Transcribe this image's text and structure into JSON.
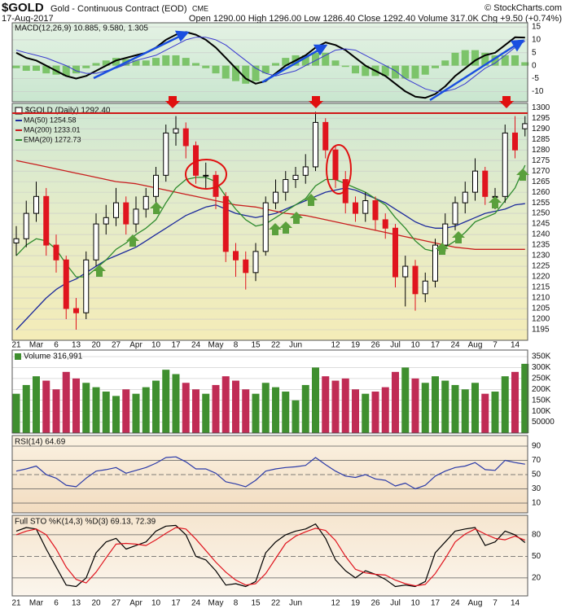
{
  "header": {
    "symbol": "$GOLD",
    "name": "Gold - Continuous Contract (EOD)",
    "exchange": "CME",
    "source": "© StockCharts.com",
    "date": "17-Aug-2017",
    "quote": "Open 1290.00 High 1296.00 Low 1286.40 Close 1292.40 Volume 317.0K Chg +9.50 (+0.74%)"
  },
  "chart_data": [
    {
      "type": "macd",
      "legend": "MACD(12,26,9) 10.885, 9.580, 1.305",
      "ylim": [
        -14,
        16.6
      ],
      "yticks": [
        15,
        10,
        5,
        0,
        -5,
        -10
      ],
      "grid": true,
      "series": [
        {
          "color": "#000000",
          "values": [
            5,
            3,
            2,
            0,
            -2,
            -4,
            -5,
            -4,
            -2,
            0,
            2,
            3,
            4,
            5,
            7,
            10,
            12,
            13,
            12,
            10,
            7,
            3,
            -1,
            -5,
            -7,
            -6,
            -3,
            0,
            2,
            4,
            7,
            9,
            8,
            6,
            3,
            0,
            -2,
            -4,
            -7,
            -10,
            -12,
            -12.5,
            -11,
            -8,
            -4,
            -1,
            2,
            4,
            5,
            8,
            11,
            10.885
          ]
        },
        {
          "color": "#3a3ad0",
          "values": [
            6,
            5,
            4,
            3,
            1.5,
            0,
            -2,
            -3,
            -3,
            -2,
            -1,
            0.5,
            2,
            3,
            4,
            6,
            8,
            10,
            11,
            11,
            10,
            8,
            5,
            2,
            -1,
            -3,
            -4,
            -3,
            -2,
            0,
            2,
            4,
            6,
            6.5,
            6,
            4,
            2,
            0,
            -2,
            -5,
            -7,
            -9,
            -10,
            -10,
            -9,
            -7,
            -4,
            -1,
            1,
            4,
            7,
            9.58
          ]
        }
      ],
      "histogram": [
        -1,
        -2,
        -2,
        -3,
        -3.5,
        -4,
        -3,
        -1,
        1,
        2,
        3,
        2.5,
        2,
        2,
        3,
        4,
        4,
        3,
        1,
        -1,
        -3,
        -5,
        -6,
        -7,
        -6,
        -3,
        1,
        3,
        4,
        4,
        5,
        5,
        2,
        -0.5,
        -3,
        -4,
        -4,
        -4,
        -5,
        -5,
        -5,
        -3.5,
        -1,
        2,
        5,
        6,
        6,
        5,
        4,
        4,
        4,
        1.305
      ],
      "histogram_color": "#7cc46a"
    },
    {
      "type": "candlestick",
      "name": "$GOLD (Daily) 1292.40",
      "categories": [
        "21",
        null,
        "Mar",
        null,
        "6",
        null,
        "13",
        null,
        "20",
        null,
        "27",
        null,
        "Apr",
        null,
        "10",
        null,
        "17",
        null,
        "24",
        null,
        "May",
        null,
        "8",
        null,
        "15",
        null,
        "22",
        null,
        "Jun",
        null,
        null,
        null,
        "12",
        null,
        "19",
        null,
        "26",
        null,
        "Jul",
        null,
        "10",
        null,
        "17",
        null,
        "24",
        null,
        "Aug",
        null,
        "7",
        null,
        "14",
        null
      ],
      "open": [
        1236,
        1238,
        1250,
        1258,
        1235,
        1228,
        1205,
        1203,
        1228,
        1245,
        1248,
        1255,
        1245,
        1252,
        1258,
        1268,
        1288,
        1290,
        1282,
        1268,
        1268,
        1258,
        1232,
        1228,
        1222,
        1232,
        1255,
        1260,
        1266,
        1268,
        1272,
        1293,
        1280,
        1266,
        1255,
        1250,
        1256,
        1247,
        1243,
        1220,
        1225,
        1212,
        1218,
        1235,
        1245,
        1255,
        1260,
        1270,
        1258,
        1258,
        1288,
        1290
      ],
      "high": [
        1244,
        1256,
        1265,
        1262,
        1240,
        1230,
        1210,
        1232,
        1250,
        1254,
        1262,
        1258,
        1258,
        1262,
        1272,
        1292,
        1296,
        1293,
        1284,
        1274,
        1270,
        1260,
        1236,
        1232,
        1236,
        1258,
        1266,
        1270,
        1272,
        1278,
        1298,
        1295,
        1282,
        1270,
        1258,
        1260,
        1258,
        1250,
        1245,
        1230,
        1228,
        1222,
        1238,
        1250,
        1258,
        1265,
        1276,
        1272,
        1262,
        1292,
        1296,
        1296
      ],
      "low": [
        1230,
        1234,
        1246,
        1230,
        1222,
        1200,
        1195,
        1200,
        1225,
        1240,
        1244,
        1240,
        1241,
        1248,
        1254,
        1265,
        1282,
        1276,
        1264,
        1262,
        1252,
        1227,
        1220,
        1214,
        1218,
        1230,
        1252,
        1256,
        1262,
        1264,
        1270,
        1276,
        1262,
        1250,
        1246,
        1246,
        1242,
        1238,
        1215,
        1206,
        1204,
        1208,
        1215,
        1232,
        1242,
        1250,
        1256,
        1254,
        1252,
        1255,
        1276,
        1286.4
      ],
      "close": [
        1238,
        1250,
        1258,
        1235,
        1228,
        1205,
        1203,
        1228,
        1245,
        1248,
        1255,
        1245,
        1252,
        1258,
        1268,
        1288,
        1290,
        1282,
        1268,
        1268,
        1258,
        1232,
        1228,
        1222,
        1232,
        1255,
        1260,
        1266,
        1268,
        1272,
        1293,
        1280,
        1266,
        1255,
        1250,
        1256,
        1247,
        1243,
        1220,
        1225,
        1212,
        1218,
        1235,
        1245,
        1255,
        1260,
        1270,
        1258,
        1258,
        1288,
        1280,
        1292.4
      ],
      "up_color": "#000000",
      "down_color": "#e0141e",
      "overlays": [
        {
          "name": "MA(50) 1254.58",
          "color": "#1c2a9c",
          "values": [
            1195,
            1200,
            1205,
            1210,
            1214,
            1217,
            1219,
            1222,
            1225,
            1228,
            1230,
            1232,
            1234,
            1237,
            1240,
            1243,
            1246,
            1249,
            1251,
            1253,
            1254,
            1252,
            1250,
            1249,
            1248,
            1249,
            1250,
            1252,
            1254,
            1256,
            1258,
            1260,
            1261,
            1262,
            1261,
            1259,
            1257,
            1255,
            1252,
            1249,
            1246,
            1244,
            1243,
            1243,
            1244,
            1246,
            1248,
            1250,
            1251,
            1252,
            1254,
            1254.58
          ]
        },
        {
          "name": "MA(200) 1233.01",
          "color": "#c81e1e",
          "values": [
            1275,
            1274,
            1273,
            1272,
            1271,
            1270,
            1269,
            1268,
            1267,
            1266,
            1265,
            1264.5,
            1264,
            1263,
            1262,
            1261,
            1260,
            1259,
            1258,
            1257,
            1256,
            1255,
            1254,
            1253.5,
            1253,
            1252,
            1251,
            1250,
            1249.5,
            1249,
            1248,
            1247,
            1246,
            1245,
            1244,
            1243,
            1242,
            1241,
            1240,
            1239,
            1238,
            1237,
            1236,
            1235,
            1234,
            1233.5,
            1233,
            1233,
            1233,
            1233,
            1233,
            1233.01
          ]
        },
        {
          "name": "EMA(20) 1272.73",
          "color": "#2e8b2e",
          "values": [
            1230,
            1235,
            1238,
            1237,
            1233,
            1226,
            1220,
            1220,
            1224,
            1228,
            1233,
            1236,
            1240,
            1243,
            1247,
            1255,
            1262,
            1266,
            1267,
            1267,
            1265,
            1258,
            1252,
            1247,
            1244,
            1245,
            1248,
            1251,
            1254,
            1257,
            1263,
            1266,
            1266,
            1264,
            1262,
            1260,
            1257,
            1254,
            1248,
            1243,
            1237,
            1233,
            1232,
            1234,
            1237,
            1241,
            1246,
            1248,
            1250,
            1256,
            1262,
            1272.73
          ]
        }
      ],
      "ylim": [
        1190,
        1302
      ],
      "yticks": [
        1300,
        1295,
        1290,
        1285,
        1280,
        1275,
        1270,
        1265,
        1260,
        1255,
        1250,
        1245,
        1240,
        1235,
        1230,
        1225,
        1220,
        1215,
        1210,
        1205,
        1200,
        1195
      ],
      "grid": true
    },
    {
      "type": "bar",
      "legend": "Volume 316,991",
      "values": [
        180000,
        220000,
        260000,
        240000,
        200000,
        280000,
        250000,
        230000,
        210000,
        190000,
        170000,
        200000,
        180000,
        210000,
        240000,
        290000,
        270000,
        230000,
        200000,
        180000,
        220000,
        260000,
        240000,
        200000,
        180000,
        230000,
        210000,
        190000,
        150000,
        220000,
        300000,
        260000,
        240000,
        250000,
        200000,
        180000,
        190000,
        210000,
        280000,
        300000,
        250000,
        230000,
        260000,
        240000,
        220000,
        200000,
        230000,
        180000,
        190000,
        260000,
        280000,
        316991
      ],
      "up_color": "#3f8f2f",
      "down_color": "#c02c55",
      "ylim": [
        0,
        380000
      ],
      "yticks": [
        {
          "value": 350000,
          "label": "350K"
        },
        {
          "value": 300000,
          "label": "300K"
        },
        {
          "value": 250000,
          "label": "250K"
        },
        {
          "value": 200000,
          "label": "200K"
        },
        {
          "value": 150000,
          "label": "150K"
        },
        {
          "value": 100000,
          "label": "100K"
        },
        50000
      ],
      "grid": true
    },
    {
      "type": "line",
      "legend": "RSI(14) 64.69",
      "series": [
        {
          "color": "#2a3aa8",
          "values": [
            55,
            58,
            62,
            50,
            45,
            35,
            33,
            45,
            55,
            57,
            60,
            52,
            56,
            60,
            66,
            74,
            75,
            68,
            58,
            58,
            52,
            40,
            37,
            33,
            42,
            55,
            58,
            60,
            61,
            63,
            74,
            64,
            55,
            48,
            46,
            50,
            44,
            42,
            34,
            38,
            30,
            35,
            48,
            55,
            60,
            62,
            67,
            57,
            56,
            70,
            67,
            64.69
          ]
        }
      ],
      "ylim": [
        -3.7,
        104.9
      ],
      "yticks": [
        90,
        70,
        50,
        30,
        10
      ],
      "grid": true
    },
    {
      "type": "line",
      "legend": "Full STO %K(14,3) %D(3) 69.13, 72.39",
      "series": [
        {
          "color": "#000000",
          "values": [
            85,
            90,
            88,
            60,
            35,
            10,
            8,
            20,
            55,
            70,
            75,
            60,
            65,
            70,
            85,
            92,
            93,
            80,
            50,
            45,
            30,
            10,
            12,
            8,
            15,
            55,
            70,
            80,
            85,
            88,
            95,
            75,
            45,
            30,
            20,
            30,
            25,
            18,
            8,
            10,
            8,
            15,
            55,
            70,
            85,
            88,
            90,
            65,
            70,
            85,
            80,
            69.13
          ]
        },
        {
          "color": "#e0141e",
          "values": [
            80,
            85,
            88,
            80,
            60,
            35,
            18,
            13,
            28,
            48,
            67,
            68,
            67,
            65,
            73,
            82,
            90,
            88,
            74,
            58,
            42,
            28,
            17,
            10,
            12,
            26,
            47,
            68,
            78,
            84,
            89,
            86,
            72,
            50,
            32,
            27,
            25,
            24,
            17,
            12,
            9,
            11,
            26,
            47,
            70,
            81,
            88,
            81,
            75,
            73,
            78,
            72.39
          ]
        }
      ],
      "ylim": [
        -5,
        107
      ],
      "yticks": [
        80,
        50,
        20
      ],
      "grid": true
    }
  ]
}
